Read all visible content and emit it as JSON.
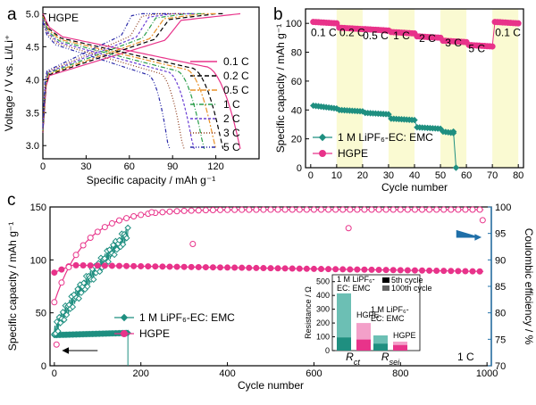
{
  "figure": {
    "panel_a_letter": "a",
    "panel_b_letter": "b",
    "panel_c_letter": "c"
  },
  "chart_data": [
    {
      "id": "a",
      "type": "line",
      "inner_label": "HGPE",
      "xlabel": "Specific capacity / mAh g⁻¹",
      "ylabel": "Voltage / V vs. Li/Li⁺",
      "xlim": [
        0,
        150
      ],
      "ylim": [
        2.8,
        5.1
      ],
      "xticks": [
        "0",
        "30",
        "60",
        "90",
        "120"
      ],
      "yticks": [
        "3.0",
        "3.5",
        "4.0",
        "4.5",
        "5.0"
      ],
      "legend_position": "lower-right",
      "series": [
        {
          "name": "0.1 C",
          "color": "#e8338a",
          "dash": "",
          "capacity": 137
        },
        {
          "name": "0.2 C",
          "color": "#000000",
          "dash": "5,3",
          "capacity": 125
        },
        {
          "name": "0.5 C",
          "color": "#e8922a",
          "dash": "6,2,2,2",
          "capacity": 120
        },
        {
          "name": "1 C",
          "color": "#2a9e4a",
          "dash": "5,2,1,2",
          "capacity": 112
        },
        {
          "name": "2 C",
          "color": "#6a3fd4",
          "dash": "3,2",
          "capacity": 105
        },
        {
          "name": "3 C",
          "color": "#8b3a1a",
          "dash": "1,2",
          "capacity": 98
        },
        {
          "name": "5 C",
          "color": "#2a2aa8",
          "dash": "4,2,1,2,1,2",
          "capacity": 88
        }
      ]
    },
    {
      "id": "b",
      "type": "scatter",
      "xlabel": "Cycle number",
      "ylabel": "Specific capacity / mAh g⁻¹",
      "xlim": [
        -2,
        82
      ],
      "ylim": [
        0,
        110
      ],
      "xticks": [
        "0",
        "10",
        "20",
        "30",
        "40",
        "50",
        "60",
        "70",
        "80"
      ],
      "yticks": [
        "0",
        "20",
        "40",
        "60",
        "80",
        "100"
      ],
      "highlight_ranges": [
        [
          10,
          20
        ],
        [
          30,
          40
        ],
        [
          50,
          60
        ],
        [
          70,
          80
        ]
      ],
      "rate_labels": [
        {
          "text": "0.1 C",
          "x": 5,
          "y": 91
        },
        {
          "text": "0.2 C",
          "x": 16,
          "y": 91
        },
        {
          "text": "0.5 C",
          "x": 25,
          "y": 89
        },
        {
          "text": "1 C",
          "x": 35,
          "y": 89
        },
        {
          "text": "2 C",
          "x": 45,
          "y": 87
        },
        {
          "text": "3 C",
          "x": 55,
          "y": 84
        },
        {
          "text": "5 C",
          "x": 64,
          "y": 80
        },
        {
          "text": "0.1 C",
          "x": 76,
          "y": 91
        }
      ],
      "legend_position": "lower-left",
      "series": [
        {
          "name": "1 M LiPF₆-EC: EMC",
          "color": "#1f8f80",
          "marker": "diamond",
          "levels": [
            [
              1,
              10,
              43,
              41
            ],
            [
              11,
              20,
              40,
              39
            ],
            [
              21,
              30,
              38,
              37
            ],
            [
              31,
              40,
              34,
              33
            ],
            [
              41,
              50,
              28,
              27
            ],
            [
              51,
              55,
              25,
              24
            ]
          ],
          "drop": [
            [
              55,
              25
            ],
            [
              56,
              0
            ]
          ]
        },
        {
          "name": "HGPE",
          "color": "#e8338a",
          "marker": "circle",
          "levels": [
            [
              1,
              10,
              101,
              100
            ],
            [
              11,
              20,
              97,
              96
            ],
            [
              21,
              30,
              96,
              95
            ],
            [
              31,
              40,
              94,
              93
            ],
            [
              41,
              50,
              91,
              90
            ],
            [
              51,
              60,
              88,
              87
            ],
            [
              61,
              70,
              85,
              84
            ],
            [
              71,
              80,
              101,
              100
            ]
          ]
        }
      ]
    },
    {
      "id": "c",
      "type": "scatter",
      "xlabel": "Cycle number",
      "ylabel": "Specific capacity / mAh g⁻¹",
      "ylabel_right": "Coulombic efficiency / %",
      "xlim": [
        -10,
        1010
      ],
      "ylim": [
        0,
        150
      ],
      "ylim_right": [
        70,
        100
      ],
      "xticks": [
        "0",
        "200",
        "400",
        "600",
        "800",
        "1000"
      ],
      "yticks": [
        "0",
        "50",
        "100",
        "150"
      ],
      "yticks_right": [
        "70",
        "75",
        "80",
        "85",
        "90",
        "95",
        "100"
      ],
      "rate_label": "1 C",
      "legend_position": "lower-left",
      "series": [
        {
          "name": "1 M LiPF₆-EC: EMC",
          "color": "#1f8f80",
          "marker": "diamond",
          "capacity": {
            "from": 0,
            "to": 170,
            "start": 29,
            "end": 31
          },
          "ce": {
            "from": 0,
            "to": 170,
            "start": 76,
            "end": 95
          }
        },
        {
          "name": "HGPE",
          "color": "#e8338a",
          "marker": "circle",
          "capacity": {
            "from": 0,
            "to": 1000,
            "start": 95,
            "peak": 95,
            "end": 89
          },
          "ce": {
            "from": 0,
            "to": 1000,
            "start": 82,
            "end": 99.5
          }
        }
      ],
      "outliers": [
        [
          5,
          74
        ],
        [
          225,
          99
        ],
        [
          320,
          93
        ],
        [
          680,
          96
        ],
        [
          990,
          97.5
        ]
      ],
      "inset": {
        "type": "bar",
        "ylabel": "Resistance / Ω",
        "ylim": [
          0,
          550
        ],
        "yticks": [
          "0",
          "100",
          "200",
          "300",
          "400",
          "500"
        ],
        "categories": [
          "R",
          "R"
        ],
        "category_subscripts": [
          "ct",
          "sei"
        ],
        "group_labels": [
          {
            "line1": "1 M LiPF₆-",
            "line2": "EC: EMC"
          },
          {
            "line1": "HGPE",
            "line2": ""
          },
          {
            "line1": "1 M LiPF₆-",
            "line2": "EC: EMC"
          },
          {
            "line1": "HGPE",
            "line2": ""
          }
        ],
        "legend": [
          "5th cycle",
          "100th cycle"
        ],
        "series": [
          {
            "name": "5th cycle",
            "values": [
              95,
              80,
              50,
              40
            ]
          },
          {
            "name": "100th cycle",
            "values": [
              415,
              200,
              110,
              65
            ]
          }
        ]
      }
    }
  ]
}
